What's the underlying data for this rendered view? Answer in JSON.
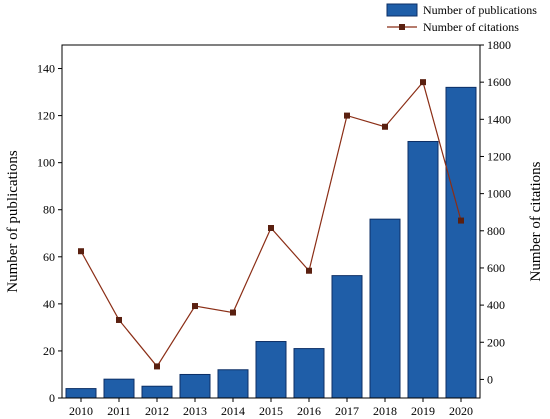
{
  "chart_data": {
    "type": "bar",
    "categories": [
      "2010",
      "2011",
      "2012",
      "2013",
      "2014",
      "2015",
      "2016",
      "2017",
      "2018",
      "2019",
      "2020"
    ],
    "series": [
      {
        "name": "Number of publications",
        "type": "bar",
        "axis": "left",
        "values": [
          4,
          8,
          5,
          10,
          12,
          24,
          21,
          52,
          76,
          109,
          132
        ]
      },
      {
        "name": "Number of citations",
        "type": "line",
        "axis": "right",
        "values": [
          690,
          320,
          70,
          395,
          360,
          815,
          585,
          1420,
          1360,
          1600,
          855
        ]
      }
    ],
    "ylabel": "Number of publications",
    "y2label": "Number of citations",
    "ylim": [
      0,
      150
    ],
    "y2lim": [
      -100,
      1800
    ],
    "yticks": [
      0,
      20,
      40,
      60,
      80,
      100,
      120,
      140
    ],
    "y2ticks": [
      0,
      200,
      400,
      600,
      800,
      1000,
      1200,
      1400,
      1600,
      1800
    ],
    "legend_position": "top-right",
    "grid": false
  },
  "colors": {
    "bar_fill": "#1f5ea8",
    "bar_stroke": "#0c2f66",
    "line": "#8b2e16",
    "marker": "#5a2010"
  }
}
